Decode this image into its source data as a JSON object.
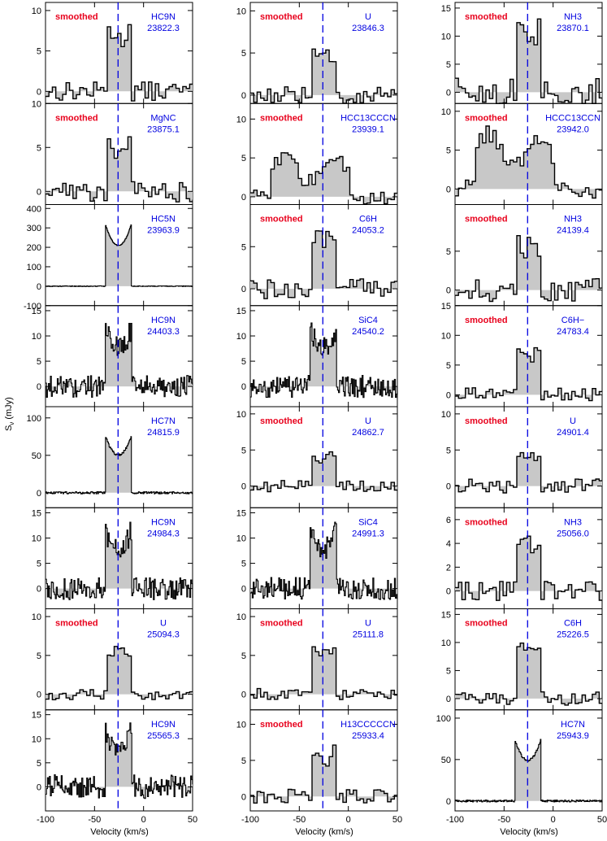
{
  "figure": {
    "y_axis_label": "S",
    "y_axis_label_sub": "ν",
    "y_axis_unit": "(mJy)",
    "x_axis_label": "Velocity (km/s)",
    "smoothed_text": "smoothed",
    "smoothed_color": "#e8001c",
    "label_color": "#0000e0",
    "dash_color": "#0000e0",
    "fill_color": "#c8c8c8",
    "line_color": "#000000",
    "dashed_line_velocity": -26,
    "xlim": [
      -100,
      50
    ],
    "x_ticks": [
      "-100",
      "-50",
      "0",
      "50"
    ]
  },
  "chart_data": [
    {
      "type": "line",
      "panel": "col1-row1",
      "species": "HC9N",
      "frequency": "23822.3",
      "smoothed": true,
      "ylim": [
        -1.5,
        11
      ],
      "yticks": [
        0,
        5,
        10
      ],
      "profile": "twohorn",
      "peak": 9,
      "width": "narrow",
      "noise": 1.2,
      "chanWidth": 3.5
    },
    {
      "type": "line",
      "panel": "col2-row1",
      "species": "U",
      "frequency": "23846.3",
      "smoothed": true,
      "ylim": [
        -1,
        11
      ],
      "yticks": [
        0,
        5,
        10
      ],
      "profile": "flat",
      "peak": 4.5,
      "width": "narrow",
      "noise": 1.0,
      "chanWidth": 3.5
    },
    {
      "type": "line",
      "panel": "col3-row1",
      "species": "NH3",
      "frequency": "23870.1",
      "smoothed": true,
      "ylim": [
        -2,
        16
      ],
      "yticks": [
        0,
        5,
        10,
        15
      ],
      "profile": "twohorn",
      "peak": 12,
      "width": "narrow",
      "noise": 2.5,
      "chanWidth": 3.5
    },
    {
      "type": "line",
      "panel": "col1-row2",
      "species": "MgNC",
      "frequency": "23875.1",
      "smoothed": true,
      "ylim": [
        -1.5,
        10
      ],
      "yticks": [
        0,
        5,
        10
      ],
      "profile": "twohorn",
      "peak": 6.5,
      "width": "narrow",
      "noise": 1.2,
      "chanWidth": 3.5
    },
    {
      "type": "line",
      "panel": "col2-row2",
      "species": "HCC13CCCN",
      "frequency": "23939.1",
      "smoothed": true,
      "ylim": [
        -1,
        12
      ],
      "yticks": [
        0,
        5,
        10
      ],
      "profile": "wide",
      "peak": 5,
      "width": "wide",
      "noise": 1.0,
      "chanWidth": 3.5
    },
    {
      "type": "line",
      "panel": "col3-row2",
      "species": "HCCC13CCN",
      "frequency": "23942.0",
      "smoothed": true,
      "ylim": [
        -2,
        11
      ],
      "yticks": [
        0,
        5,
        10
      ],
      "profile": "wide",
      "peak": 7,
      "width": "wide",
      "noise": 1.2,
      "chanWidth": 3.5
    },
    {
      "type": "line",
      "panel": "col1-row3",
      "species": "HC5N",
      "frequency": "23963.9",
      "smoothed": false,
      "ylim": [
        -100,
        420
      ],
      "yticks": [
        -100,
        0,
        100,
        200,
        300,
        400
      ],
      "profile": "twohorn",
      "peak": 300,
      "width": "narrow",
      "noise": 2,
      "chanWidth": 0.6
    },
    {
      "type": "line",
      "panel": "col2-row3",
      "species": "C6H",
      "frequency": "24053.2",
      "smoothed": true,
      "ylim": [
        -2,
        10
      ],
      "yticks": [
        0,
        5
      ],
      "profile": "flat",
      "peak": 6,
      "width": "narrow",
      "noise": 1.2,
      "chanWidth": 3.5
    },
    {
      "type": "line",
      "panel": "col3-row3",
      "species": "NH3",
      "frequency": "24139.4",
      "smoothed": true,
      "ylim": [
        -2,
        11
      ],
      "yticks": [
        0,
        5
      ],
      "profile": "flat",
      "peak": 5.5,
      "width": "narrow",
      "noise": 1.5,
      "chanWidth": 3.5
    },
    {
      "type": "line",
      "panel": "col1-row4",
      "species": "HC9N",
      "frequency": "24403.3",
      "smoothed": false,
      "ylim": [
        -4,
        16
      ],
      "yticks": [
        0,
        5,
        10,
        15
      ],
      "profile": "twohorn",
      "peak": 11,
      "width": "narrow",
      "noise": 2.2,
      "chanWidth": 1.0
    },
    {
      "type": "line",
      "panel": "col2-row4",
      "species": "SiC4",
      "frequency": "24540.2",
      "smoothed": false,
      "ylim": [
        -4,
        16
      ],
      "yticks": [
        0,
        5,
        10,
        15
      ],
      "profile": "twohorn",
      "peak": 11,
      "width": "narrow",
      "noise": 2.2,
      "chanWidth": 1.0
    },
    {
      "type": "line",
      "panel": "col3-row4",
      "species": "C6H−",
      "frequency": "24783.4",
      "smoothed": true,
      "ylim": [
        -2,
        15
      ],
      "yticks": [
        0,
        5,
        10,
        15
      ],
      "profile": "twohorn",
      "peak": 9,
      "width": "narrow",
      "noise": 1.2,
      "chanWidth": 3.5
    },
    {
      "type": "line",
      "panel": "col1-row5",
      "species": "HC7N",
      "frequency": "24815.9",
      "smoothed": false,
      "ylim": [
        -20,
        115
      ],
      "yticks": [
        0,
        50,
        100
      ],
      "profile": "twohorn",
      "peak": 72,
      "width": "narrow",
      "noise": 1.5,
      "chanWidth": 0.6
    },
    {
      "type": "line",
      "panel": "col2-row5",
      "species": "U",
      "frequency": "24862.7",
      "smoothed": true,
      "ylim": [
        -3,
        11
      ],
      "yticks": [
        0,
        5,
        10
      ],
      "profile": "flat",
      "peak": 4,
      "width": "narrow",
      "noise": 0.8,
      "chanWidth": 3.5
    },
    {
      "type": "line",
      "panel": "col3-row5",
      "species": "U",
      "frequency": "24901.4",
      "smoothed": true,
      "ylim": [
        -3,
        11
      ],
      "yticks": [
        0,
        5,
        10
      ],
      "profile": "flat",
      "peak": 4.5,
      "width": "narrow",
      "noise": 1.0,
      "chanWidth": 3.5
    },
    {
      "type": "line",
      "panel": "col1-row6",
      "species": "HC9N",
      "frequency": "24984.3",
      "smoothed": false,
      "ylim": [
        -4,
        16
      ],
      "yticks": [
        0,
        5,
        10,
        15
      ],
      "profile": "twohorn",
      "peak": 11,
      "width": "narrow",
      "noise": 2.2,
      "chanWidth": 1.0
    },
    {
      "type": "line",
      "panel": "col2-row6",
      "species": "SiC4",
      "frequency": "24991.3",
      "smoothed": false,
      "ylim": [
        -4,
        16
      ],
      "yticks": [
        0,
        5,
        10,
        15
      ],
      "profile": "twohorn",
      "peak": 11,
      "width": "narrow",
      "noise": 2.2,
      "chanWidth": 1.0
    },
    {
      "type": "line",
      "panel": "col3-row6",
      "species": "NH3",
      "frequency": "25056.0",
      "smoothed": true,
      "ylim": [
        -1.5,
        7
      ],
      "yticks": [
        0,
        2,
        4,
        6
      ],
      "profile": "flat",
      "peak": 4,
      "width": "narrow",
      "noise": 0.8,
      "chanWidth": 3.5
    },
    {
      "type": "line",
      "panel": "col1-row7",
      "species": "U",
      "frequency": "25094.3",
      "smoothed": true,
      "ylim": [
        -2,
        11
      ],
      "yticks": [
        0,
        5,
        10
      ],
      "profile": "flat",
      "peak": 5.5,
      "width": "narrow",
      "noise": 0.7,
      "chanWidth": 3.5
    },
    {
      "type": "line",
      "panel": "col2-row7",
      "species": "U",
      "frequency": "25111.8",
      "smoothed": true,
      "ylim": [
        -2,
        11
      ],
      "yticks": [
        0,
        5,
        10
      ],
      "profile": "flat",
      "peak": 5.5,
      "width": "narrow",
      "noise": 0.8,
      "chanWidth": 3.5
    },
    {
      "type": "line",
      "panel": "col3-row7",
      "species": "C6H",
      "frequency": "25226.5",
      "smoothed": true,
      "ylim": [
        -2,
        16
      ],
      "yticks": [
        0,
        5,
        10,
        15
      ],
      "profile": "flat",
      "peak": 9,
      "width": "narrow",
      "noise": 1.2,
      "chanWidth": 3.5
    },
    {
      "type": "line",
      "panel": "col1-row8",
      "species": "HC9N",
      "frequency": "25565.3",
      "smoothed": false,
      "ylim": [
        -5,
        16
      ],
      "yticks": [
        0,
        5,
        10,
        15
      ],
      "profile": "twohorn",
      "peak": 11,
      "width": "narrow",
      "noise": 2.5,
      "chanWidth": 1.0
    },
    {
      "type": "line",
      "panel": "col2-row8",
      "species": "H13CCCCCN",
      "frequency": "25933.4",
      "smoothed": true,
      "ylim": [
        -2,
        12
      ],
      "yticks": [
        0,
        5,
        10
      ],
      "profile": "twohorn",
      "peak": 7,
      "width": "narrow",
      "noise": 1.0,
      "chanWidth": 3.5
    },
    {
      "type": "line",
      "panel": "col3-row8",
      "species": "HC7N",
      "frequency": "25943.9",
      "smoothed": false,
      "ylim": [
        -12,
        110
      ],
      "yticks": [
        0,
        50,
        100
      ],
      "profile": "twohorn",
      "peak": 70,
      "width": "narrow",
      "noise": 1.2,
      "chanWidth": 0.6
    }
  ]
}
